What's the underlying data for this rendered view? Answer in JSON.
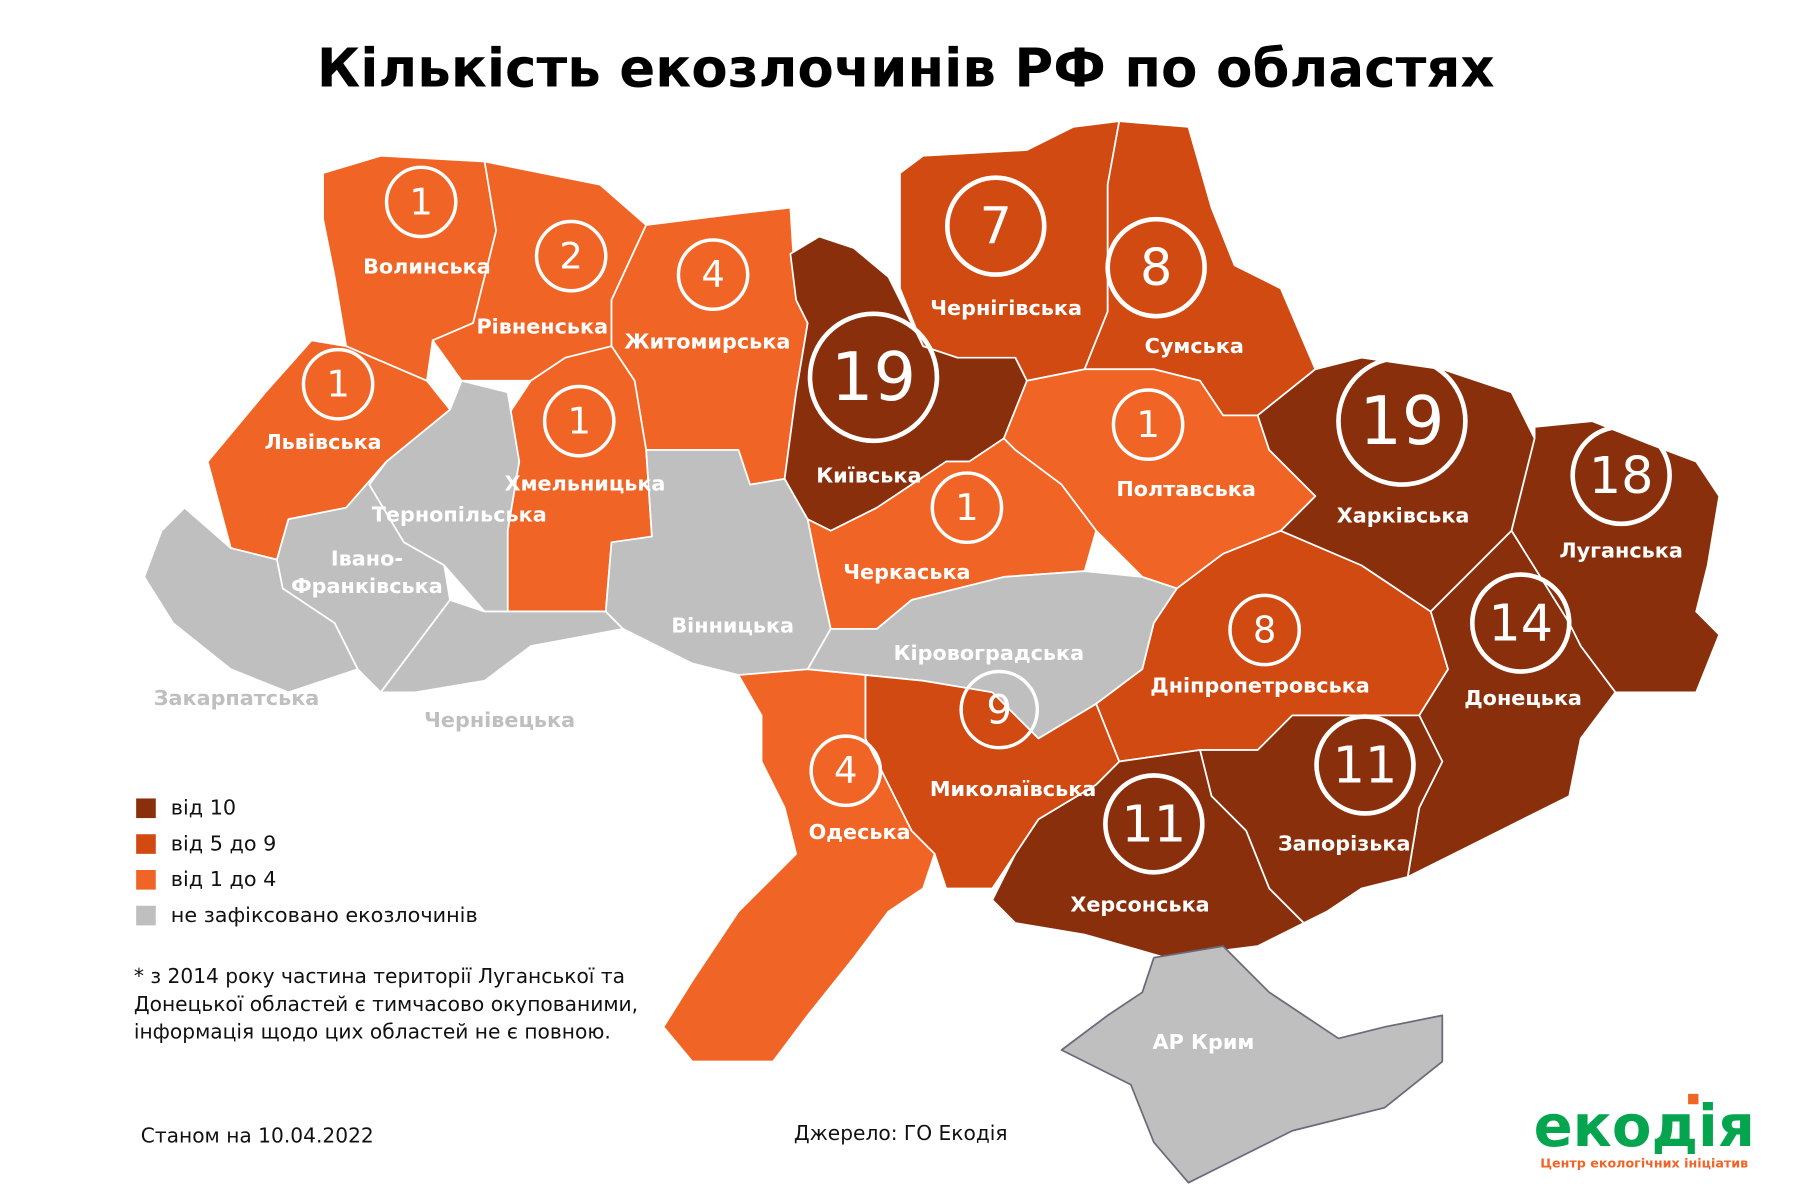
{
  "title": "Кількість екозлочинів РФ по областях",
  "colors": {
    "from_10": "#8a2f0c",
    "from_5_to_9": "#d04a12",
    "from_1_to_4": "#f06525",
    "none": "#bfbfbf"
  },
  "legend": [
    {
      "label": "від 10",
      "color": "#8a2f0c"
    },
    {
      "label": "від 5 до 9",
      "color": "#d04a12"
    },
    {
      "label": "від 1 до 4",
      "color": "#f06525"
    },
    {
      "label": "не зафіксовано екозлочинів",
      "color": "#bfbfbf"
    }
  ],
  "note": [
    "* з 2014 року частина території Луганської та",
    "Донецької областей є тимчасово окупованими,",
    "інформація щодо цих областей не є повною."
  ],
  "date_label": "Станом на 10.04.2022",
  "source_label": "Джерело: ГО Екодія",
  "logo": {
    "name": "екодія",
    "tagline": "Центр екологічних ініціатив",
    "green": "#05a54f",
    "orange": "#f06525"
  },
  "regions": [
    {
      "name": "Волинська",
      "count": 1,
      "category": "from_1_to_4"
    },
    {
      "name": "Рівненська",
      "count": 2,
      "category": "from_1_to_4"
    },
    {
      "name": "Житомирська",
      "count": 4,
      "category": "from_1_to_4"
    },
    {
      "name": "Львівська",
      "count": 1,
      "category": "from_1_to_4"
    },
    {
      "name": "Хмельницька",
      "count": 1,
      "category": "from_1_to_4"
    },
    {
      "name": "Тернопільська",
      "count": null,
      "category": "none"
    },
    {
      "name": "Івано-Франківська",
      "count": null,
      "category": "none"
    },
    {
      "name": "Закарпатська",
      "count": null,
      "category": "none"
    },
    {
      "name": "Чернівецька",
      "count": null,
      "category": "none"
    },
    {
      "name": "Вінницька",
      "count": null,
      "category": "none"
    },
    {
      "name": "Київська",
      "count": 19,
      "category": "from_10"
    },
    {
      "name": "Чернігівська",
      "count": 7,
      "category": "from_5_to_9"
    },
    {
      "name": "Сумська",
      "count": 8,
      "category": "from_5_to_9"
    },
    {
      "name": "Полтавська",
      "count": 1,
      "category": "from_1_to_4"
    },
    {
      "name": "Черкаська",
      "count": 1,
      "category": "from_1_to_4"
    },
    {
      "name": "Кіровоградська",
      "count": null,
      "category": "none"
    },
    {
      "name": "Дніпропетровська",
      "count": 8,
      "category": "from_5_to_9"
    },
    {
      "name": "Харківська",
      "count": 19,
      "category": "from_10"
    },
    {
      "name": "Луганська",
      "count": 18,
      "category": "from_10"
    },
    {
      "name": "Донецька",
      "count": 14,
      "category": "from_10"
    },
    {
      "name": "Запорізька",
      "count": 11,
      "category": "from_10"
    },
    {
      "name": "Херсонська",
      "count": 11,
      "category": "from_10"
    },
    {
      "name": "Миколаївська",
      "count": 9,
      "category": "from_5_to_9"
    },
    {
      "name": "Одеська",
      "count": 4,
      "category": "from_1_to_4"
    },
    {
      "name": "АР Крим",
      "count": null,
      "category": "none"
    }
  ]
}
